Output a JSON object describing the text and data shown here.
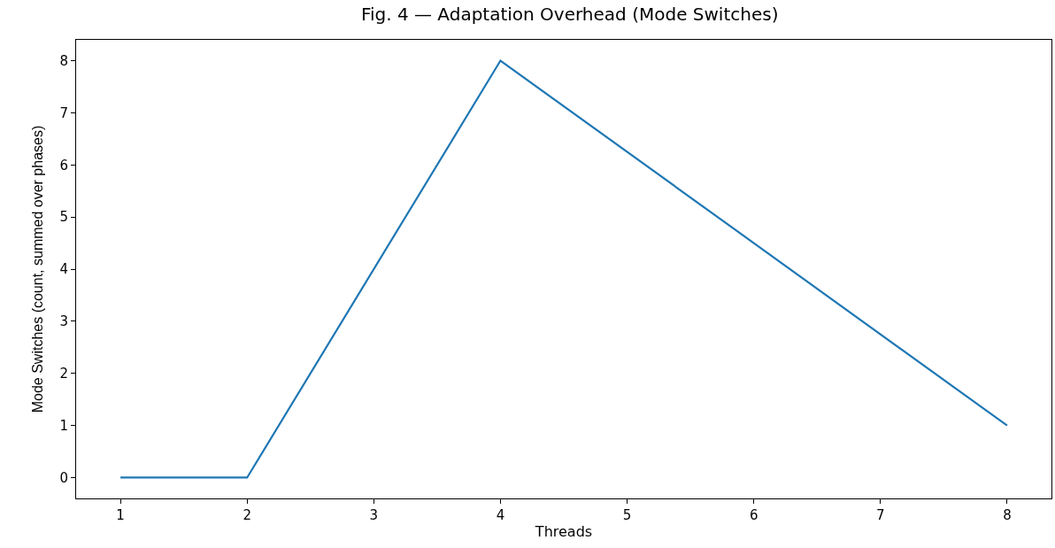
{
  "chart_data": {
    "type": "line",
    "title": "Fig. 4 — Adaptation Overhead (Mode Switches)",
    "xlabel": "Threads",
    "ylabel": "Mode Switches (count, summed over phases)",
    "x": [
      1,
      2,
      4,
      8
    ],
    "series": [
      {
        "color": "#1f77b4",
        "values": [
          0,
          0,
          8,
          1
        ]
      }
    ],
    "xlim": [
      0.65,
      8.35
    ],
    "xticks": [
      1,
      2,
      3,
      4,
      5,
      6,
      7,
      8
    ],
    "ylim": [
      -0.4,
      8.4
    ],
    "yticks": [
      0,
      1,
      2,
      3,
      4,
      5,
      6,
      7,
      8
    ],
    "marker": "none",
    "line_style": "solid"
  }
}
